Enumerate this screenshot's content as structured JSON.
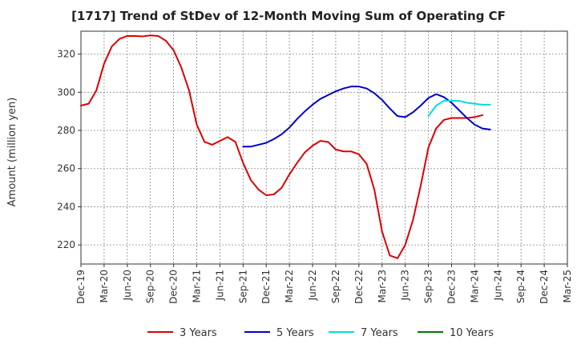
{
  "chart_data": {
    "type": "line",
    "title": "[1717]  Trend of StDev of 12-Month Moving Sum of Operating CF",
    "xlabel": "",
    "ylabel": "Amount (million yen)",
    "ylim": [
      210,
      332
    ],
    "yticks": [
      220,
      240,
      260,
      280,
      300,
      320
    ],
    "grid": true,
    "legend_position": "bottom",
    "x_tick_labels": [
      "Dec-19",
      "Mar-20",
      "Jun-20",
      "Sep-20",
      "Dec-20",
      "Mar-21",
      "Jun-21",
      "Sep-21",
      "Dec-21",
      "Mar-22",
      "Jun-22",
      "Sep-22",
      "Dec-22",
      "Mar-23",
      "Jun-23",
      "Sep-23",
      "Dec-23",
      "Mar-24",
      "Jun-24",
      "Sep-24",
      "Dec-24",
      "Mar-25"
    ],
    "x_start": "Dec-19",
    "x_end": "Mar-25",
    "series": [
      {
        "name": "3 Years",
        "color": "#dd0000",
        "start_month_index": 0,
        "values": [
          293,
          294,
          301,
          315,
          324,
          328,
          329.5,
          329.5,
          329.3,
          329.8,
          329.5,
          327,
          322,
          313,
          301,
          283,
          274,
          272.5,
          274.5,
          276.5,
          274,
          263,
          254,
          249,
          246,
          246.5,
          250,
          257,
          263,
          268.5,
          272,
          274.5,
          274,
          270,
          269,
          269,
          267.5,
          262.5,
          249,
          227,
          214.5,
          213,
          220,
          233,
          251,
          271,
          281,
          285.5,
          286.5,
          286.5,
          286.5,
          287,
          288
        ]
      },
      {
        "name": "5 Years",
        "color": "#0000cc",
        "start_month_index": 21,
        "values": [
          271.5,
          271.5,
          272.5,
          273.5,
          275.5,
          278,
          281.5,
          286,
          290,
          293.5,
          296.5,
          298.5,
          300.5,
          302,
          303,
          303,
          302,
          299.5,
          296,
          291.5,
          287.5,
          287,
          289.5,
          293,
          297,
          299,
          297.5,
          294.5,
          290.5,
          286.5,
          283,
          281,
          280.5
        ]
      },
      {
        "name": "7 Years",
        "color": "#00dddd",
        "start_month_index": 45,
        "values": [
          287.5,
          293,
          295.5,
          295.5,
          295.5,
          294.5,
          294,
          293.5,
          293.5
        ]
      },
      {
        "name": "10 Years",
        "color": "#007700",
        "start_month_index": 0,
        "values": []
      }
    ]
  }
}
